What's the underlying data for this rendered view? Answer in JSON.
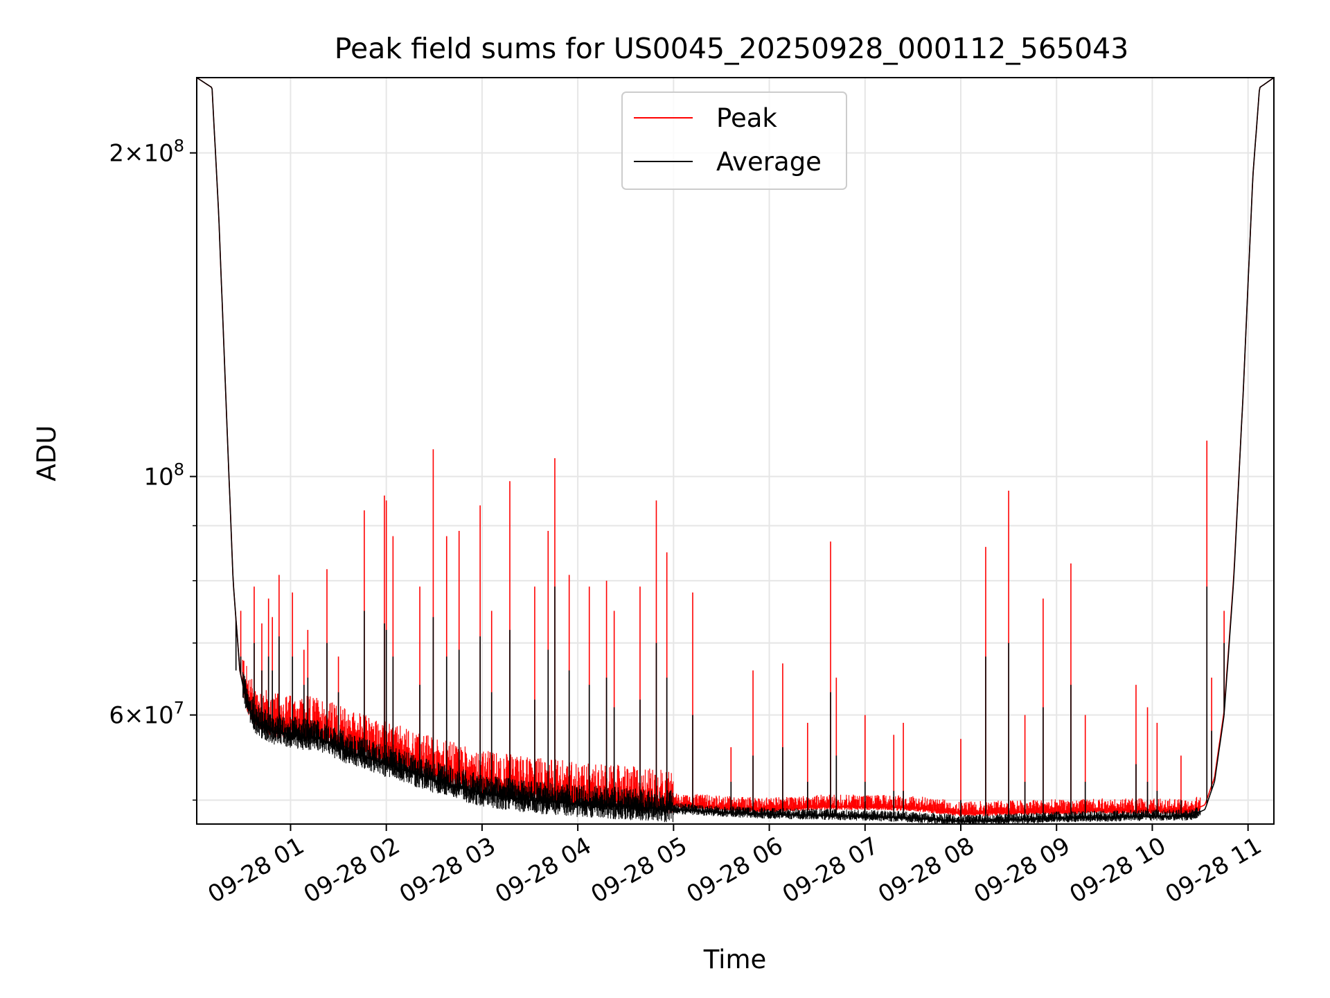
{
  "chart_data": {
    "type": "line",
    "title": "Peak field sums for US0045_20250928_000112_565043",
    "xlabel": "Time",
    "ylabel": "ADU",
    "y_scale": "log",
    "ylim": [
      47500000,
      235000000
    ],
    "x_unit": "hours since 2025-09-28 00:00",
    "xlim": [
      0.02,
      11.27
    ],
    "grid": true,
    "legend": {
      "position": "upper center",
      "entries": [
        {
          "label": "Peak",
          "color": "#ff0000"
        },
        {
          "label": "Average",
          "color": "#000000"
        }
      ]
    },
    "x_ticks": [
      {
        "value": 1,
        "label": "09-28 01"
      },
      {
        "value": 2,
        "label": "09-28 02"
      },
      {
        "value": 3,
        "label": "09-28 03"
      },
      {
        "value": 4,
        "label": "09-28 04"
      },
      {
        "value": 5,
        "label": "09-28 05"
      },
      {
        "value": 6,
        "label": "09-28 06"
      },
      {
        "value": 7,
        "label": "09-28 07"
      },
      {
        "value": 8,
        "label": "09-28 08"
      },
      {
        "value": 9,
        "label": "09-28 09"
      },
      {
        "value": 10,
        "label": "09-28 10"
      },
      {
        "value": 11,
        "label": "09-28 11"
      }
    ],
    "y_major_ticks": [
      {
        "value": 60000000,
        "mantissa": "6",
        "exponent": "7"
      },
      {
        "value": 100000000,
        "mantissa": "",
        "exponent": "8"
      },
      {
        "value": 200000000,
        "mantissa": "2",
        "exponent": "8"
      }
    ],
    "y_minor_ticks": [
      50000000,
      70000000,
      80000000,
      90000000
    ],
    "baseline": {
      "x": [
        0.02,
        0.18,
        0.25,
        0.33,
        0.4,
        0.47,
        0.55,
        0.65,
        0.8,
        1.0,
        1.3,
        1.6,
        2.0,
        2.5,
        3.0,
        3.5,
        4.0,
        4.5,
        5.0,
        5.5,
        6.0,
        6.5,
        7.0,
        7.5,
        8.0,
        8.5,
        9.0,
        9.5,
        10.0,
        10.4,
        10.55,
        10.65,
        10.75,
        10.85,
        10.95,
        11.05,
        11.12,
        11.27
      ],
      "average": [
        235000000,
        230000000,
        175000000,
        115000000,
        80000000,
        66000000,
        61000000,
        59000000,
        58000000,
        57500000,
        57000000,
        55500000,
        54000000,
        52200000,
        50700000,
        50000000,
        49600000,
        49300000,
        49000000,
        48700000,
        48500000,
        48400000,
        48300000,
        48100000,
        47800000,
        47900000,
        48100000,
        48200000,
        48300000,
        48300000,
        49000000,
        52000000,
        60000000,
        80000000,
        120000000,
        190000000,
        230000000,
        235000000
      ],
      "peak": [
        235000000,
        230000000,
        175000000,
        115000000,
        80000000,
        66000000,
        61500000,
        59500000,
        58500000,
        58200000,
        58000000,
        56500000,
        55000000,
        53200000,
        51700000,
        51000000,
        50500000,
        50000000,
        49500000,
        49200000,
        49000000,
        49300000,
        49300000,
        49200000,
        48600000,
        48700000,
        48800000,
        48900000,
        48900000,
        48800000,
        49500000,
        52500000,
        60500000,
        80500000,
        120000000,
        190000000,
        230000000,
        235000000
      ]
    },
    "spikes": {
      "x": [
        0.43,
        0.48,
        0.62,
        0.7,
        0.77,
        0.81,
        0.88,
        1.02,
        1.14,
        1.18,
        1.38,
        1.5,
        1.77,
        1.98,
        2.0,
        2.07,
        2.35,
        2.49,
        2.63,
        2.76,
        2.98,
        3.1,
        3.29,
        3.55,
        3.69,
        3.76,
        3.91,
        4.12,
        4.3,
        4.38,
        4.65,
        4.82,
        4.93,
        5.2,
        5.6,
        5.83,
        6.14,
        6.4,
        6.64,
        6.7,
        7.0,
        7.3,
        7.4,
        8.0,
        8.26,
        8.5,
        8.67,
        8.86,
        9.15,
        9.3,
        9.83,
        9.95,
        10.05,
        10.3,
        10.57,
        10.62,
        10.75
      ],
      "peak": [
        71000000,
        75000000,
        79000000,
        73000000,
        77000000,
        74000000,
        81000000,
        78000000,
        69000000,
        72000000,
        82000000,
        68000000,
        93000000,
        96000000,
        95000000,
        88000000,
        79000000,
        106000000,
        88000000,
        89000000,
        94000000,
        75000000,
        99000000,
        79000000,
        89000000,
        104000000,
        81000000,
        79000000,
        80000000,
        75000000,
        79000000,
        95000000,
        85000000,
        78000000,
        56000000,
        66000000,
        67000000,
        59000000,
        87000000,
        65000000,
        60000000,
        57500000,
        59000000,
        57000000,
        86000000,
        97000000,
        60000000,
        77000000,
        83000000,
        60000000,
        64000000,
        61000000,
        59000000,
        55000000,
        108000000,
        65000000,
        75000000
      ],
      "average": [
        66000000,
        68000000,
        70000000,
        66000000,
        68000000,
        66000000,
        71000000,
        68000000,
        64000000,
        65000000,
        70000000,
        63000000,
        75000000,
        73000000,
        72000000,
        68000000,
        64000000,
        74000000,
        68000000,
        69000000,
        71000000,
        63000000,
        72000000,
        62000000,
        69000000,
        79000000,
        66000000,
        64000000,
        65000000,
        61000000,
        62000000,
        70000000,
        65000000,
        60000000,
        52000000,
        55000000,
        56000000,
        52000000,
        63000000,
        55000000,
        52000000,
        51000000,
        51000000,
        50000000,
        68000000,
        70000000,
        52000000,
        61000000,
        64000000,
        52000000,
        54000000,
        52000000,
        51000000,
        50000000,
        79000000,
        58000000,
        70000000
      ]
    }
  }
}
